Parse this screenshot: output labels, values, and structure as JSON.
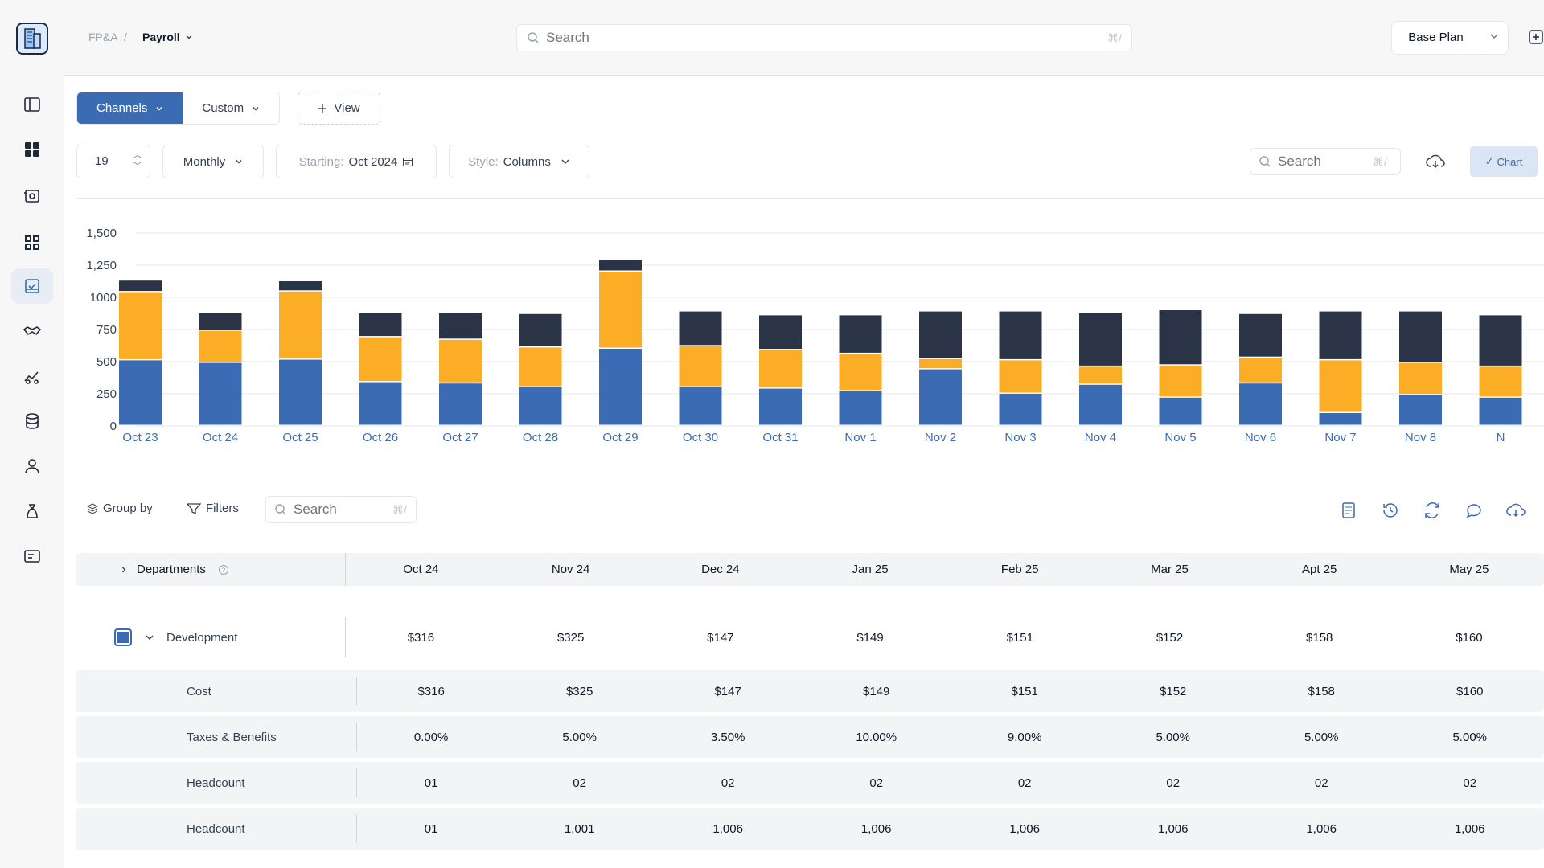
{
  "breadcrumb": {
    "root": "FP&A",
    "separator": "/",
    "current": "Payroll"
  },
  "search": {
    "placeholder": "Search",
    "shortcut": "⌘/"
  },
  "plan": {
    "label": "Base Plan"
  },
  "view_tabs": [
    {
      "label": "Channels",
      "active": true
    },
    {
      "label": "Custom",
      "active": false
    }
  ],
  "add_view_label": "View",
  "controls": {
    "periods": "19",
    "frequency": "Monthly",
    "starting_label": "Starting:",
    "starting_value": "Oct 2024",
    "style_label": "Style:",
    "style_value": "Columns",
    "chart_toggle": "Chart"
  },
  "colors": {
    "accent": "#3b6cb3",
    "blue": "#3b6cb3",
    "orange": "#fbae25",
    "navy": "#2b3446"
  },
  "chart_data": {
    "type": "bar",
    "stacked": true,
    "categories": [
      "Oct 23",
      "Oct 24",
      "Oct 25",
      "Oct 26",
      "Oct 27",
      "Oct 28",
      "Oct 29",
      "Oct 30",
      "Oct 31",
      "Nov 1",
      "Nov 2",
      "Nov 3",
      "Nov 4",
      "Nov 5",
      "Nov 6",
      "Nov 7",
      "Nov 8",
      "N"
    ],
    "y_ticks": [
      "1,500",
      "1,250",
      "1000",
      "750",
      "500",
      "250",
      "0"
    ],
    "ylim": [
      0,
      1500
    ],
    "series": [
      {
        "name": "Blue",
        "color": "#3b6cb3",
        "values": [
          510,
          490,
          515,
          340,
          330,
          300,
          600,
          300,
          290,
          270,
          440,
          250,
          320,
          220,
          330,
          100,
          240,
          220
        ]
      },
      {
        "name": "Orange",
        "color": "#fbae25",
        "values": [
          530,
          250,
          530,
          350,
          340,
          310,
          600,
          320,
          300,
          290,
          80,
          260,
          140,
          250,
          200,
          410,
          250,
          240
        ]
      },
      {
        "name": "Navy",
        "color": "#2b3446",
        "values": [
          90,
          140,
          80,
          190,
          210,
          260,
          90,
          270,
          270,
          300,
          370,
          380,
          420,
          430,
          340,
          380,
          400,
          400
        ]
      }
    ]
  },
  "table_toolbar": {
    "group_by": "Group by",
    "filters": "Filters",
    "search_placeholder": "Search",
    "search_shortcut": "⌘/"
  },
  "table": {
    "dimension_header": "Departments",
    "columns": [
      "Oct 24",
      "Nov 24",
      "Dec 24",
      "Jan 25",
      "Feb 25",
      "Mar 25",
      "Apt 25",
      "May 25"
    ],
    "group": {
      "label": "Development",
      "values": [
        "$316",
        "$325",
        "$147",
        "$149",
        "$151",
        "$152",
        "$158",
        "$160"
      ]
    },
    "rows": [
      {
        "label": "Cost",
        "values": [
          "$316",
          "$325",
          "$147",
          "$149",
          "$151",
          "$152",
          "$158",
          "$160"
        ]
      },
      {
        "label": "Taxes & Benefits",
        "values": [
          "0.00%",
          "5.00%",
          "3.50%",
          "10.00%",
          "9.00%",
          "5.00%",
          "5.00%",
          "5.00%"
        ]
      },
      {
        "label": "Headcount",
        "values": [
          "01",
          "02",
          "02",
          "02",
          "02",
          "02",
          "02",
          "02"
        ]
      },
      {
        "label": "Headcount",
        "values": [
          "01",
          "1,001",
          "1,006",
          "1,006",
          "1,006",
          "1,006",
          "1,006",
          "1,006"
        ]
      }
    ]
  }
}
